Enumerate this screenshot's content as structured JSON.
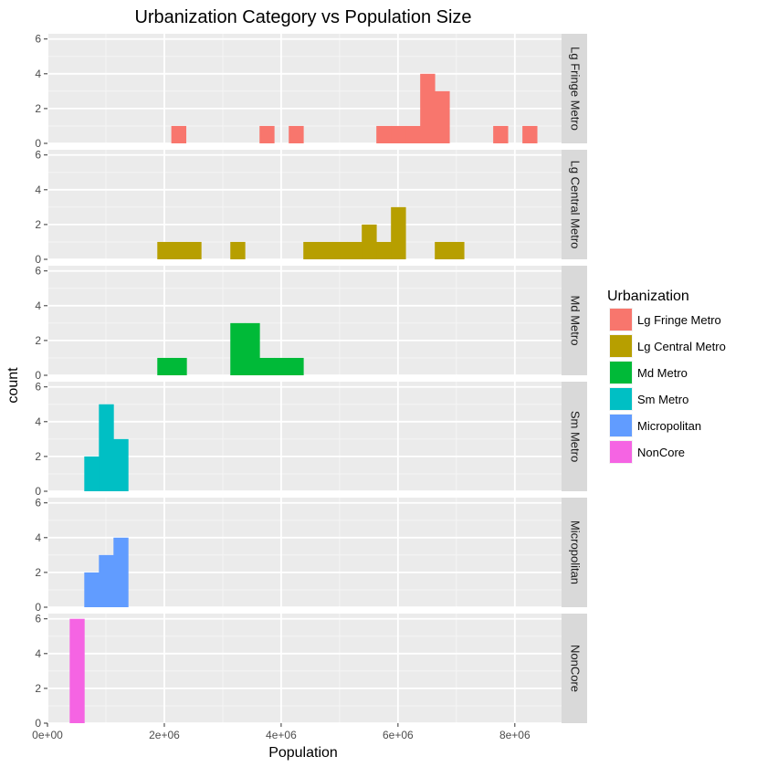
{
  "chart_data": {
    "type": "bar",
    "subtype": "faceted-histogram",
    "title": "Urbanization Category vs Population Size",
    "xlabel": "Population",
    "ylabel": "count",
    "xlim": [
      0,
      8800000
    ],
    "ylim": [
      0,
      6.3
    ],
    "x_ticks": [
      0,
      2000000,
      4000000,
      6000000,
      8000000
    ],
    "x_tick_labels": [
      "0e+00",
      "2e+06",
      "4e+06",
      "6e+06",
      "8e+06"
    ],
    "y_ticks": [
      0,
      2,
      4,
      6
    ],
    "y_tick_labels": [
      "0",
      "2",
      "4",
      "6"
    ],
    "bin_width": 250000,
    "grid": true,
    "legend": {
      "title": "Urbanization",
      "position": "right"
    },
    "series": [
      {
        "name": "Lg Fringe Metro",
        "color": "#F8766D",
        "bins": [
          {
            "x0": 2120000,
            "count": 1
          },
          {
            "x0": 3630000,
            "count": 1
          },
          {
            "x0": 4130000,
            "count": 1
          },
          {
            "x0": 5630000,
            "count": 1
          },
          {
            "x0": 5880000,
            "count": 1
          },
          {
            "x0": 6130000,
            "count": 1
          },
          {
            "x0": 6380000,
            "count": 4
          },
          {
            "x0": 6630000,
            "count": 3
          },
          {
            "x0": 7630000,
            "count": 1
          },
          {
            "x0": 8130000,
            "count": 1
          }
        ]
      },
      {
        "name": "Lg Central Metro",
        "color": "#B79F00",
        "bins": [
          {
            "x0": 1880000,
            "count": 1
          },
          {
            "x0": 2130000,
            "count": 1
          },
          {
            "x0": 2380000,
            "count": 1
          },
          {
            "x0": 3130000,
            "count": 1
          },
          {
            "x0": 4380000,
            "count": 1
          },
          {
            "x0": 4630000,
            "count": 1
          },
          {
            "x0": 4880000,
            "count": 1
          },
          {
            "x0": 5130000,
            "count": 1
          },
          {
            "x0": 5380000,
            "count": 2
          },
          {
            "x0": 5630000,
            "count": 1
          },
          {
            "x0": 5880000,
            "count": 3
          },
          {
            "x0": 6630000,
            "count": 1
          },
          {
            "x0": 6880000,
            "count": 1
          }
        ]
      },
      {
        "name": "Md Metro",
        "color": "#00BA38",
        "bins": [
          {
            "x0": 1880000,
            "count": 1
          },
          {
            "x0": 2130000,
            "count": 1
          },
          {
            "x0": 3130000,
            "count": 3
          },
          {
            "x0": 3380000,
            "count": 3
          },
          {
            "x0": 3630000,
            "count": 1
          },
          {
            "x0": 3880000,
            "count": 1
          },
          {
            "x0": 4130000,
            "count": 1
          }
        ]
      },
      {
        "name": "Sm Metro",
        "color": "#00BFC4",
        "bins": [
          {
            "x0": 630000,
            "count": 2
          },
          {
            "x0": 880000,
            "count": 5
          },
          {
            "x0": 1130000,
            "count": 3
          }
        ]
      },
      {
        "name": "Micropolitan",
        "color": "#619CFF",
        "bins": [
          {
            "x0": 630000,
            "count": 2
          },
          {
            "x0": 880000,
            "count": 3
          },
          {
            "x0": 1130000,
            "count": 4
          }
        ]
      },
      {
        "name": "NonCore",
        "color": "#F564E3",
        "bins": [
          {
            "x0": 380000,
            "count": 6
          }
        ]
      }
    ]
  }
}
